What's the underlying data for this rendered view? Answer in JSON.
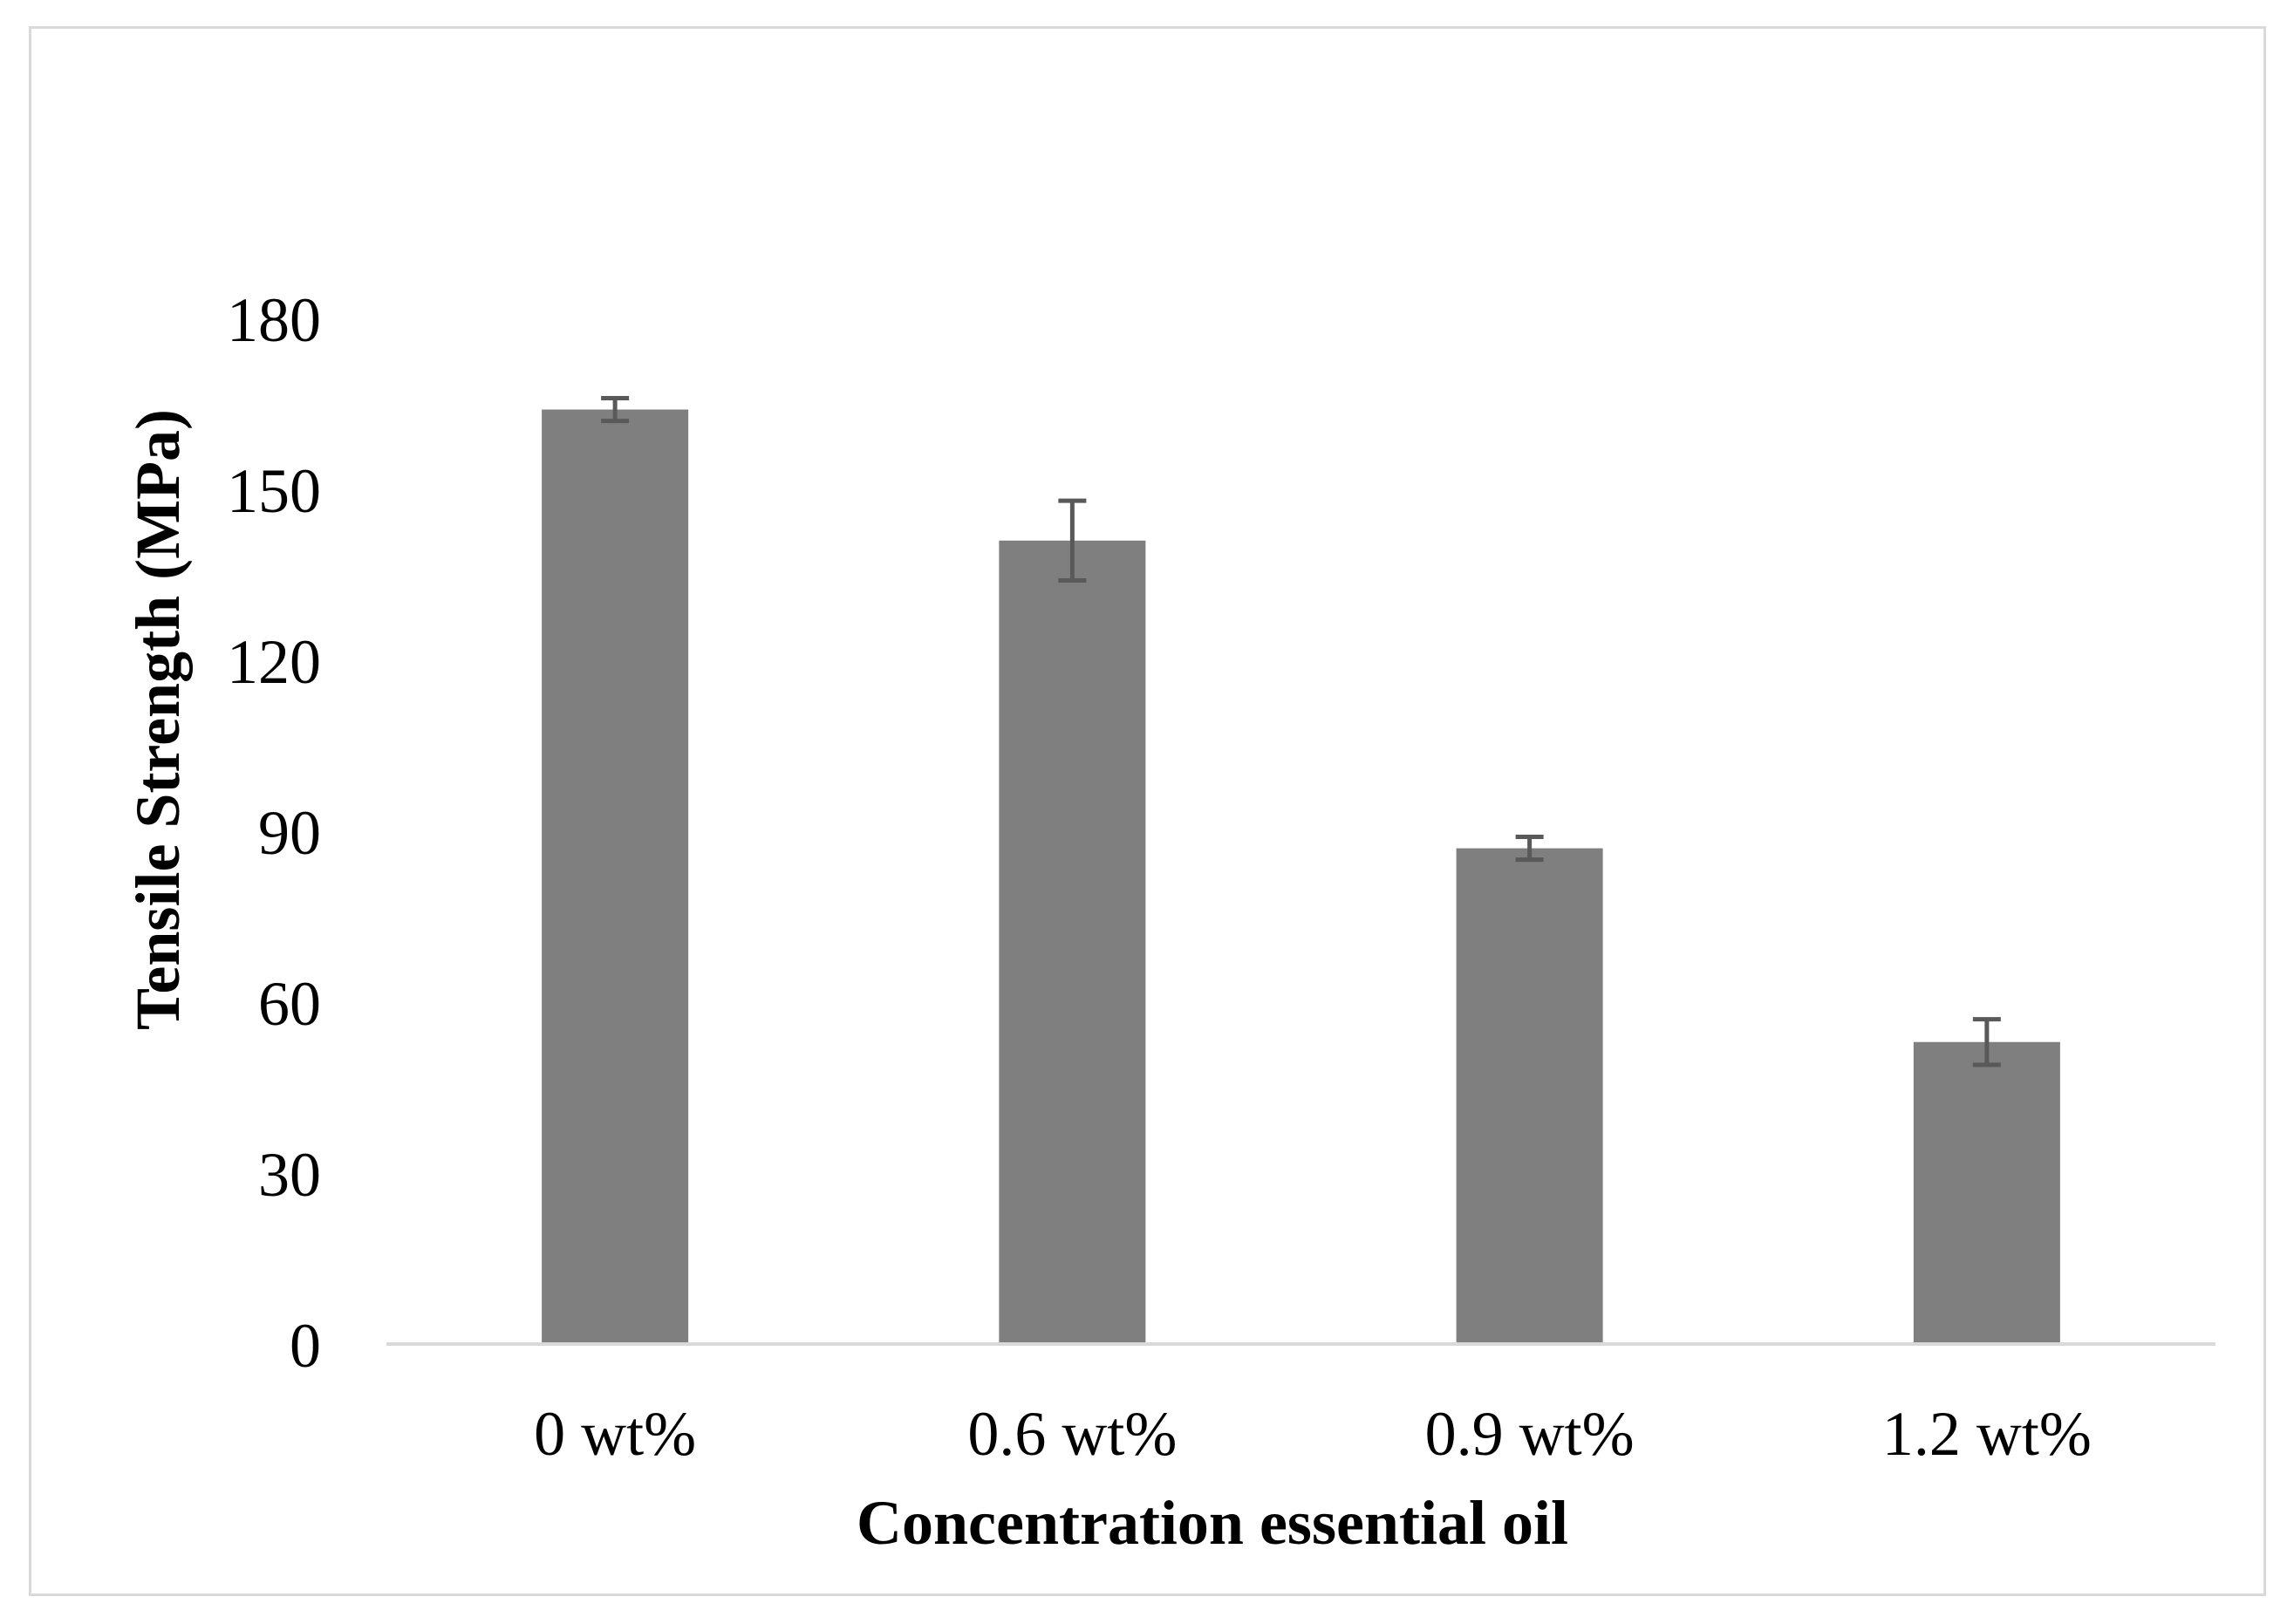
{
  "chart_data": {
    "type": "bar",
    "title": "",
    "xlabel": "Concentration essential oil",
    "ylabel": "Tensile Strength (MPa)",
    "categories": [
      "0 wt%",
      "0.6 wt%",
      "0.9 wt%",
      "1.2 wt%"
    ],
    "values": [
      164,
      141,
      87,
      53
    ],
    "error": [
      2,
      7,
      2,
      4
    ],
    "ylim": [
      0,
      180
    ],
    "yticks": [
      0,
      30,
      60,
      90,
      120,
      150,
      180
    ],
    "ytick_labels": [
      "0",
      "30",
      "60",
      "90",
      "120",
      "150",
      "180"
    ],
    "grid": false,
    "legend": "none",
    "colors": {
      "bar": "#7f7f7f",
      "error_bar": "#595959",
      "axis_line": "#d9d9d9",
      "frame": "#d9d9d9",
      "text": "#000000"
    }
  }
}
